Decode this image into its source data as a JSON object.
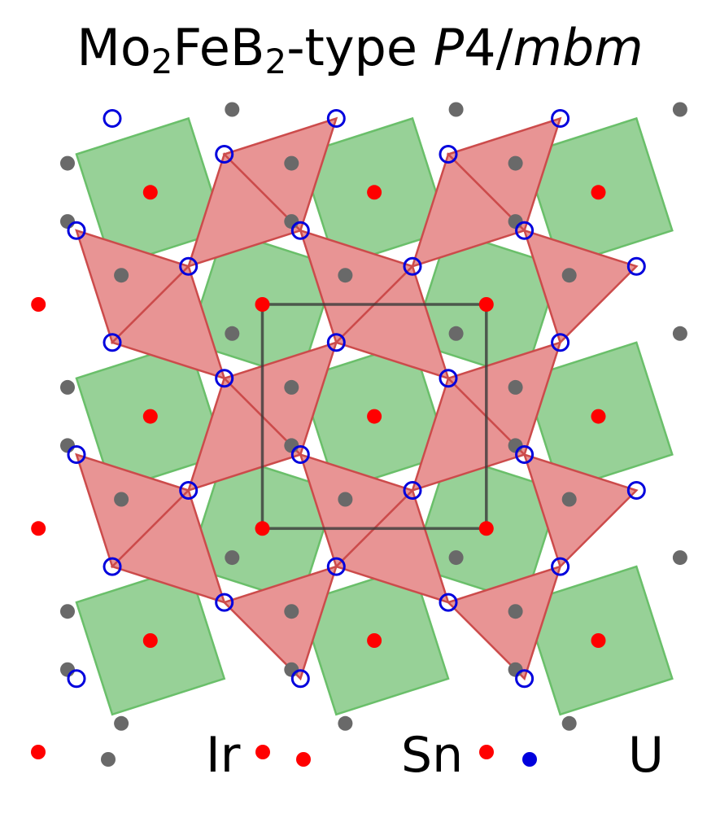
{
  "title": {
    "parts": [
      {
        "text": "Mo",
        "style": "normal"
      },
      {
        "text": "2",
        "style": "sub"
      },
      {
        "text": "FeB",
        "style": "normal"
      },
      {
        "text": "2",
        "style": "sub"
      },
      {
        "text": "-type ",
        "style": "normal"
      },
      {
        "text": "P",
        "style": "italic"
      },
      {
        "text": "4/",
        "style": "normal"
      },
      {
        "text": "mbm",
        "style": "italic"
      }
    ]
  },
  "legend": [
    {
      "label": "Ir",
      "color": "#ff0000"
    },
    {
      "label": "Sn",
      "color": "#696969"
    },
    {
      "label": "U",
      "color": "#0000dd"
    }
  ],
  "colors": {
    "square_fill": "#97d197",
    "square_edge": "#6abf6a",
    "triangle_fill": "#e89494",
    "triangle_edge": "#cc4b4b",
    "unit_cell": "#3a3a3a",
    "ir": "#ff0000",
    "sn": "#696969",
    "u": "#0000dd"
  },
  "icons": {
    "ir_atom": "red-dot-icon",
    "sn_atom": "gray-dot-icon",
    "u_atom": "blue-ring-icon"
  }
}
